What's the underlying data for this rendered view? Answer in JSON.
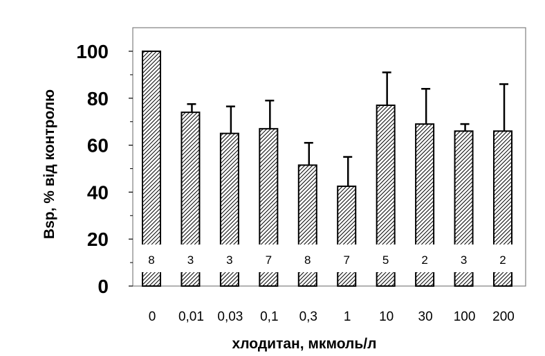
{
  "chart_data": {
    "type": "bar",
    "title": "",
    "xlabel": "хлодитан, мкмоль/л",
    "ylabel": "Bsp, % від контролю",
    "ylim": [
      0,
      100
    ],
    "yticks": [
      "0",
      "20",
      "40",
      "60",
      "80",
      "100"
    ],
    "categories": [
      "0",
      "0,01",
      "0,03",
      "0,1",
      "0,3",
      "1",
      "10",
      "30",
      "100",
      "200"
    ],
    "values": [
      100,
      74,
      65,
      67,
      51.5,
      42.5,
      77,
      69,
      66,
      66
    ],
    "errors": [
      0,
      3.5,
      11.5,
      12,
      9.5,
      12.5,
      14,
      15,
      3,
      20
    ],
    "n_labels": [
      "8",
      "3",
      "3",
      "7",
      "8",
      "7",
      "5",
      "2",
      "3",
      "2"
    ],
    "bar_fill": "hatched",
    "grid": false,
    "legend": "none",
    "colors": {
      "bar_stroke": "#000000",
      "hatch": "#000000",
      "background": "#ffffff"
    }
  }
}
